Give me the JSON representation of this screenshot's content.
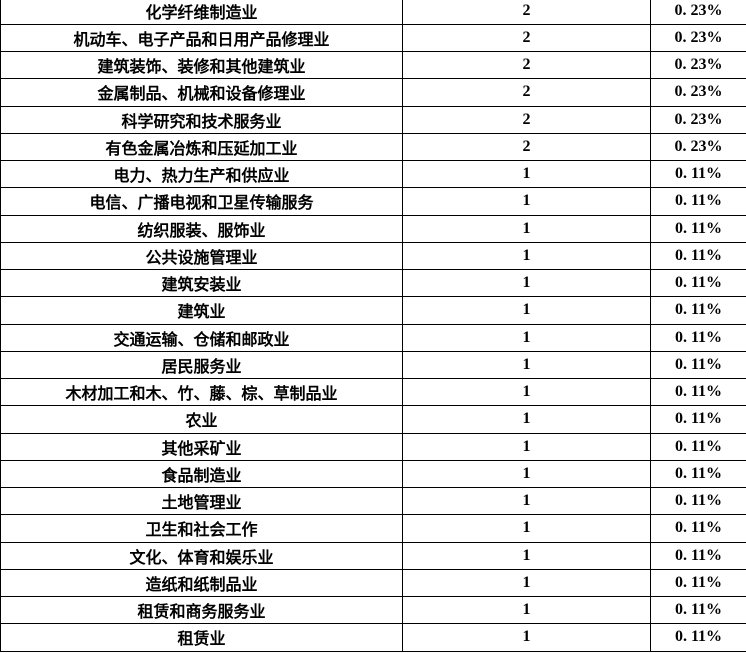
{
  "colors": {
    "background": "#ffffff",
    "border": "#000000",
    "text": "#000000"
  },
  "table": {
    "rows": [
      {
        "industry": "化学纤维制造业",
        "count": "2",
        "percent": "0. 23%"
      },
      {
        "industry": "机动车、电子产品和日用产品修理业",
        "count": "2",
        "percent": "0. 23%"
      },
      {
        "industry": "建筑装饰、装修和其他建筑业",
        "count": "2",
        "percent": "0. 23%"
      },
      {
        "industry": "金属制品、机械和设备修理业",
        "count": "2",
        "percent": "0. 23%"
      },
      {
        "industry": "科学研究和技术服务业",
        "count": "2",
        "percent": "0. 23%"
      },
      {
        "industry": "有色金属冶炼和压延加工业",
        "count": "2",
        "percent": "0. 23%"
      },
      {
        "industry": "电力、热力生产和供应业",
        "count": "1",
        "percent": "0. 11%"
      },
      {
        "industry": "电信、广播电视和卫星传输服务",
        "count": "1",
        "percent": "0. 11%"
      },
      {
        "industry": "纺织服装、服饰业",
        "count": "1",
        "percent": "0. 11%"
      },
      {
        "industry": "公共设施管理业",
        "count": "1",
        "percent": "0. 11%"
      },
      {
        "industry": "建筑安装业",
        "count": "1",
        "percent": "0. 11%"
      },
      {
        "industry": "建筑业",
        "count": "1",
        "percent": "0. 11%"
      },
      {
        "industry": "交通运输、仓储和邮政业",
        "count": "1",
        "percent": "0. 11%"
      },
      {
        "industry": "居民服务业",
        "count": "1",
        "percent": "0. 11%"
      },
      {
        "industry": "木材加工和木、竹、藤、棕、草制品业",
        "count": "1",
        "percent": "0. 11%"
      },
      {
        "industry": "农业",
        "count": "1",
        "percent": "0. 11%"
      },
      {
        "industry": "其他采矿业",
        "count": "1",
        "percent": "0. 11%"
      },
      {
        "industry": "食品制造业",
        "count": "1",
        "percent": "0. 11%"
      },
      {
        "industry": "土地管理业",
        "count": "1",
        "percent": "0. 11%"
      },
      {
        "industry": "卫生和社会工作",
        "count": "1",
        "percent": "0. 11%"
      },
      {
        "industry": "文化、体育和娱乐业",
        "count": "1",
        "percent": "0. 11%"
      },
      {
        "industry": "造纸和纸制品业",
        "count": "1",
        "percent": "0. 11%"
      },
      {
        "industry": "租赁和商务服务业",
        "count": "1",
        "percent": "0. 11%"
      },
      {
        "industry": "租赁业",
        "count": "1",
        "percent": "0. 11%"
      }
    ]
  }
}
